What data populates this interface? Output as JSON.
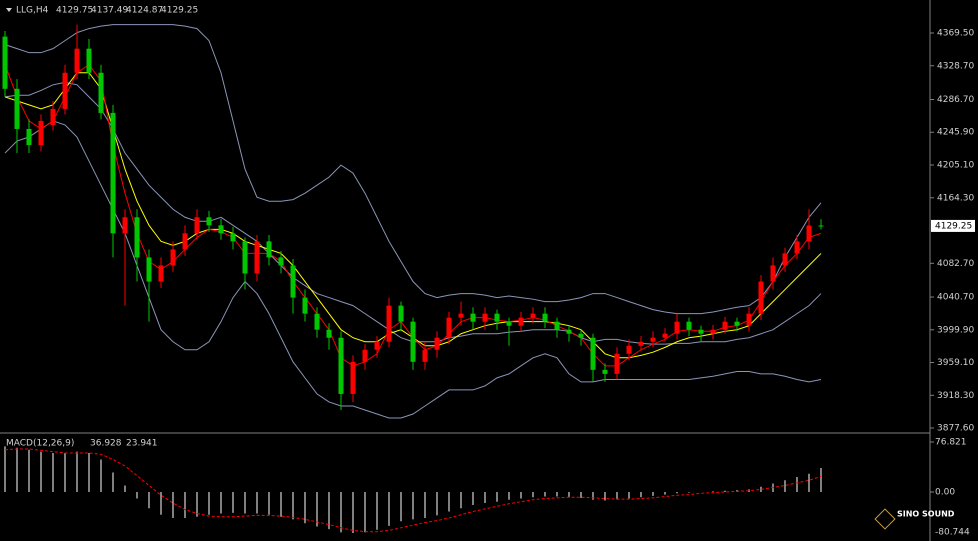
{
  "header": {
    "symbol": "LLG,H4",
    "open": 4129.75,
    "high": 4137.49,
    "low": 4124.87,
    "close": 4129.25
  },
  "logo": "SINO SOUND",
  "chart_data": [
    {
      "type": "candlestick",
      "up_color": "#ff0000",
      "down_color": "#00c800",
      "open": [
        4365,
        4300,
        4250,
        4230,
        4255,
        4275,
        4320,
        4350,
        4320,
        4270,
        4120,
        4140,
        4090,
        4060,
        4080,
        4100,
        4120,
        4140,
        4130,
        4120,
        4110,
        4070,
        4110,
        4090,
        4080,
        4040,
        4020,
        4000,
        3990,
        3920,
        3960,
        3975,
        3985,
        4030,
        4010,
        3960,
        3975,
        3990,
        4015,
        4020,
        4010,
        4020,
        4010,
        4005,
        4015,
        4020,
        4010,
        4000,
        3995,
        3990,
        3950,
        3945,
        3970,
        3980,
        3985,
        3990,
        3995,
        4010,
        4000,
        3995,
        4000,
        4010,
        4005,
        4020,
        4060,
        4080,
        4095,
        4110,
        4129.75
      ],
      "high": [
        4372,
        4312,
        4262,
        4268,
        4285,
        4330,
        4380,
        4362,
        4330,
        4280,
        4150,
        4150,
        4100,
        4090,
        4110,
        4130,
        4150,
        4148,
        4138,
        4128,
        4115,
        4118,
        4118,
        4098,
        4088,
        4050,
        4028,
        4008,
        3998,
        3968,
        3982,
        3992,
        4040,
        4035,
        4015,
        3985,
        3998,
        4022,
        4035,
        4028,
        4028,
        4025,
        4015,
        4022,
        4028,
        4028,
        4015,
        4005,
        4000,
        3995,
        3958,
        3978,
        3988,
        3992,
        3998,
        4002,
        4020,
        4015,
        4005,
        4006,
        4016,
        4015,
        4028,
        4068,
        4090,
        4102,
        4118,
        4150,
        4137.49
      ],
      "low": [
        4290,
        4220,
        4220,
        4222,
        4248,
        4268,
        4312,
        4312,
        4262,
        4090,
        4030,
        4060,
        4010,
        4052,
        4072,
        4092,
        4112,
        4122,
        4112,
        4100,
        4050,
        4060,
        4080,
        4070,
        4020,
        4010,
        3990,
        3975,
        3900,
        3910,
        3950,
        3965,
        3978,
        3998,
        3950,
        3950,
        3965,
        3982,
        4005,
        4000,
        4000,
        4000,
        3980,
        3998,
        4008,
        4002,
        3990,
        3985,
        3980,
        3935,
        3935,
        3938,
        3962,
        3975,
        3978,
        3985,
        3988,
        3992,
        3985,
        3988,
        3995,
        3998,
        3998,
        4012,
        4050,
        4072,
        4088,
        4100,
        4124.87
      ],
      "close": [
        4300,
        4250,
        4230,
        4260,
        4275,
        4320,
        4350,
        4320,
        4270,
        4120,
        4140,
        4090,
        4060,
        4080,
        4100,
        4120,
        4140,
        4130,
        4120,
        4110,
        4070,
        4110,
        4090,
        4080,
        4040,
        4020,
        4000,
        3990,
        3920,
        3960,
        3975,
        3985,
        4030,
        4010,
        3960,
        3975,
        3990,
        4015,
        4020,
        4010,
        4020,
        4010,
        4005,
        4015,
        4020,
        4010,
        4000,
        3995,
        3990,
        3950,
        3945,
        3970,
        3980,
        3985,
        3990,
        3995,
        4010,
        4000,
        3995,
        4000,
        4010,
        4005,
        4020,
        4060,
        4080,
        4095,
        4110,
        4129.75,
        4129.25
      ],
      "overlays": [
        {
          "color": "#8a96b8",
          "values": [
            4355,
            4350,
            4345,
            4345,
            4350,
            4360,
            4370,
            4375,
            4378,
            4380,
            4380,
            4380,
            4380,
            4380,
            4380,
            4378,
            4375,
            4360,
            4320,
            4260,
            4200,
            4165,
            4160,
            4160,
            4162,
            4170,
            4180,
            4190,
            4205,
            4195,
            4170,
            4140,
            4110,
            4085,
            4060,
            4045,
            4040,
            4043,
            4045,
            4045,
            4043,
            4040,
            4042,
            4040,
            4038,
            4035,
            4035,
            4037,
            4040,
            4045,
            4045,
            4040,
            4035,
            4030,
            4025,
            4022,
            4020,
            4020,
            4020,
            4022,
            4025,
            4028,
            4030,
            4040,
            4060,
            4090,
            4115,
            4140,
            4158
          ]
        },
        {
          "color": "#8a96b8",
          "values": [
            4290,
            4292,
            4292,
            4298,
            4305,
            4308,
            4305,
            4290,
            4275,
            4250,
            4220,
            4200,
            4180,
            4165,
            4150,
            4140,
            4135,
            4135,
            4140,
            4130,
            4120,
            4110,
            4095,
            4080,
            4065,
            4055,
            4045,
            4040,
            4035,
            4030,
            4020,
            4010,
            4000,
            3990,
            3985,
            3985,
            3985,
            3990,
            3992,
            3995,
            3995,
            3995,
            3997,
            3998,
            4000,
            4000,
            4000,
            3998,
            3990,
            3985,
            3988,
            3988,
            3985,
            3983,
            3982,
            3982,
            3983,
            3983,
            3985,
            3985,
            3985,
            3988,
            3990,
            3995,
            4000,
            4010,
            4020,
            4030,
            4045
          ]
        },
        {
          "color": "#8a96b8",
          "values": [
            4220,
            4235,
            4240,
            4250,
            4260,
            4255,
            4240,
            4210,
            4180,
            4150,
            4120,
            4080,
            4040,
            4000,
            3985,
            3975,
            3975,
            3985,
            4010,
            4040,
            4060,
            4045,
            4020,
            3990,
            3960,
            3940,
            3920,
            3910,
            3905,
            3905,
            3900,
            3895,
            3890,
            3890,
            3895,
            3905,
            3915,
            3925,
            3925,
            3925,
            3930,
            3940,
            3945,
            3955,
            3965,
            3970,
            3965,
            3945,
            3935,
            3935,
            3938,
            3938,
            3938,
            3938,
            3938,
            3938,
            3938,
            3938,
            3940,
            3942,
            3945,
            3948,
            3948,
            3945,
            3945,
            3942,
            3938,
            3935,
            3938
          ]
        },
        {
          "color": "#ffff00",
          "values": [
            4290,
            4285,
            4280,
            4275,
            4280,
            4300,
            4320,
            4320,
            4300,
            4250,
            4200,
            4160,
            4130,
            4110,
            4105,
            4110,
            4120,
            4125,
            4125,
            4120,
            4110,
            4105,
            4100,
            4095,
            4080,
            4060,
            4040,
            4020,
            4000,
            3990,
            3985,
            3985,
            3995,
            4000,
            3990,
            3980,
            3980,
            3985,
            3995,
            4000,
            4005,
            4008,
            4010,
            4010,
            4010,
            4010,
            4008,
            4005,
            4000,
            3985,
            3970,
            3965,
            3965,
            3968,
            3972,
            3978,
            3985,
            3990,
            3992,
            3995,
            3998,
            4000,
            4005,
            4020,
            4035,
            4050,
            4065,
            4080,
            4095
          ]
        },
        {
          "color": "#ff0000",
          "values": [
            4330,
            4290,
            4260,
            4250,
            4260,
            4290,
            4320,
            4330,
            4310,
            4230,
            4170,
            4120,
            4085,
            4075,
            4085,
            4100,
            4115,
            4125,
            4122,
            4115,
            4095,
            4095,
            4095,
            4085,
            4060,
            4040,
            4020,
            4000,
            3965,
            3955,
            3960,
            3970,
            4000,
            4010,
            3990,
            3975,
            3980,
            3995,
            4010,
            4015,
            4015,
            4012,
            4010,
            4012,
            4015,
            4012,
            4005,
            3998,
            3990,
            3970,
            3955,
            3955,
            3965,
            3975,
            3982,
            3988,
            3998,
            4000,
            3998,
            3998,
            4003,
            4005,
            4012,
            4035,
            4060,
            4080,
            4095,
            4115,
            4120
          ]
        }
      ],
      "ylim": [
        3872.6,
        4410.6
      ],
      "yticks": [
        {
          "value": 4369.5,
          "label": "4369.50"
        },
        {
          "value": 4328.7,
          "label": "4328.70"
        },
        {
          "value": 4286.7,
          "label": "4286.70"
        },
        {
          "value": 4245.9,
          "label": "4245.90"
        },
        {
          "value": 4205.1,
          "label": "4205.10"
        },
        {
          "value": 4164.3,
          "label": "4164.30"
        },
        {
          "value": 4082.7,
          "label": "4082.70"
        },
        {
          "value": 4040.7,
          "label": "4040.70"
        },
        {
          "value": 3999.9,
          "label": "3999.90"
        },
        {
          "value": 3959.1,
          "label": "3959.10"
        },
        {
          "value": 3918.3,
          "label": "3918.30"
        },
        {
          "value": 3877.6,
          "label": "3877.60"
        }
      ]
    },
    {
      "type": "macd",
      "title": "MACD(12,26,9)",
      "hist_color": "#ffffff",
      "signal_color": "#ff0000",
      "histogram": [
        70,
        68,
        65,
        62,
        60,
        60,
        62,
        60,
        50,
        30,
        10,
        -10,
        -25,
        -35,
        -40,
        -40,
        -38,
        -35,
        -33,
        -32,
        -33,
        -33,
        -35,
        -38,
        -42,
        -48,
        -53,
        -57,
        -62,
        -63,
        -62,
        -58,
        -52,
        -45,
        -42,
        -40,
        -36,
        -30,
        -25,
        -20,
        -17,
        -15,
        -12,
        -10,
        -8,
        -7,
        -7,
        -8,
        -9,
        -12,
        -13,
        -12,
        -10,
        -8,
        -6,
        -4,
        -2,
        -1,
        0,
        1,
        2,
        3,
        4,
        8,
        13,
        18,
        23,
        28,
        36.928
      ],
      "signal": [
        65,
        66,
        66,
        64,
        62,
        60,
        60,
        60,
        58,
        50,
        40,
        25,
        10,
        -5,
        -17,
        -27,
        -33,
        -37,
        -38,
        -38,
        -37,
        -36,
        -36,
        -37,
        -39,
        -42,
        -46,
        -50,
        -55,
        -59,
        -61,
        -61,
        -59,
        -55,
        -51,
        -47,
        -44,
        -40,
        -35,
        -30,
        -26,
        -22,
        -18,
        -15,
        -12,
        -10,
        -9,
        -8,
        -8,
        -9,
        -10,
        -11,
        -11,
        -10,
        -9,
        -7,
        -5,
        -4,
        -2,
        -1,
        0,
        1,
        2,
        4,
        7,
        10,
        14,
        18,
        23.941
      ],
      "ylim": [
        -75.3,
        84.5
      ],
      "yticks": [
        76.821,
        {
          "value": 0,
          "label": "0.00"
        },
        -80.744
      ]
    }
  ]
}
